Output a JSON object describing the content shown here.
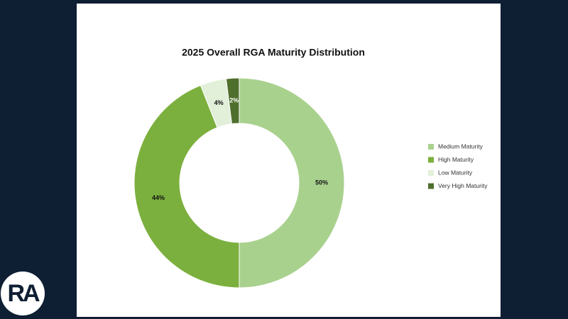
{
  "logo": "RA",
  "chart_data": {
    "type": "donut",
    "title": "2025 Overall RGA Maturity Distribution",
    "categories": [
      "Medium Maturity",
      "High Maturity",
      "Low Maturity",
      "Very High Maturity"
    ],
    "values": [
      50,
      44,
      4,
      2
    ],
    "value_labels": [
      "50%",
      "44%",
      "4%",
      "2%"
    ],
    "colors": [
      "#a9d18e",
      "#7cb03e",
      "#e2efd9",
      "#4f6f2d"
    ],
    "label_colors": [
      "#111111",
      "#111111",
      "#111111",
      "#ffffff"
    ],
    "legend": "right"
  }
}
